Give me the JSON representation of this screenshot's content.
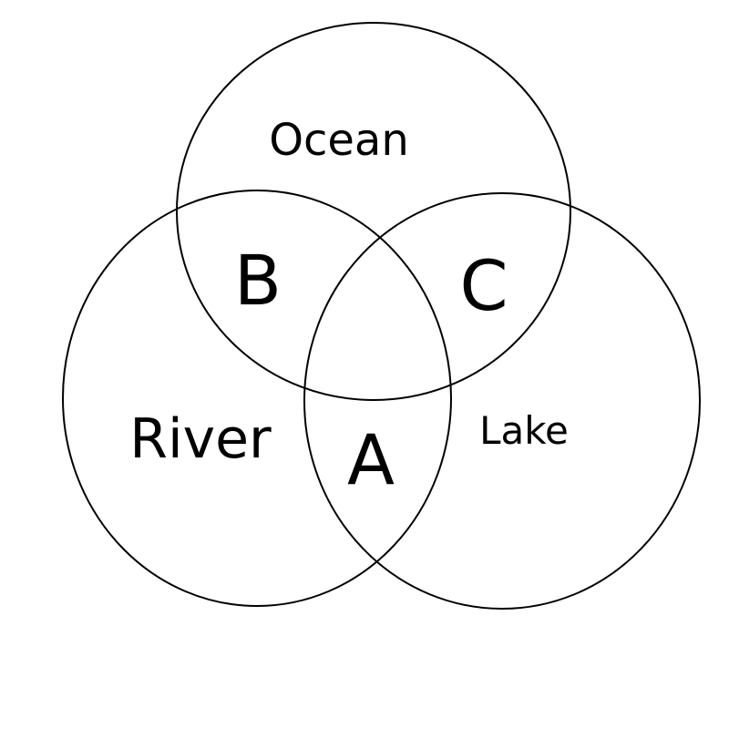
{
  "diagram": {
    "type": "venn-3",
    "sets": {
      "ocean": "Ocean",
      "river": "River",
      "lake": "Lake"
    },
    "regions": {
      "a": "A",
      "b": "B",
      "c": "C"
    }
  },
  "colors": {
    "stroke": "#000000",
    "background": "#ffffff"
  }
}
